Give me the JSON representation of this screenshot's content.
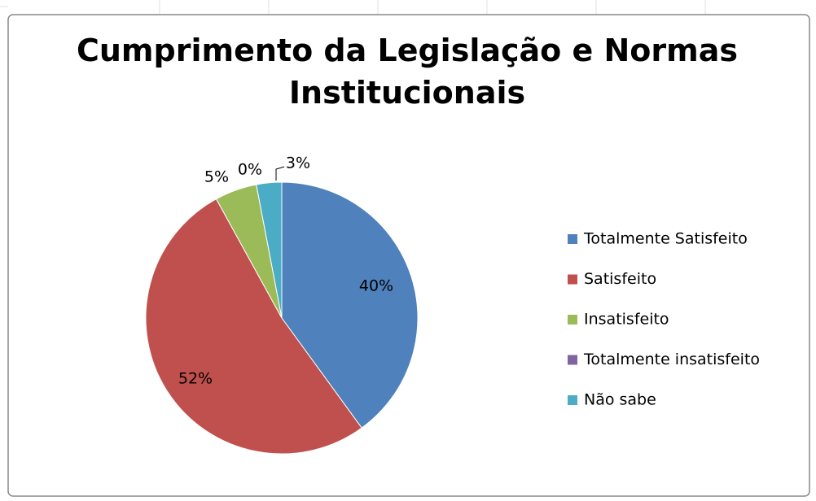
{
  "chart_data": {
    "type": "pie",
    "title": "Cumprimento da Legislação e Normas Institucionais",
    "categories": [
      "Totalmente Satisfeito",
      "Satisfeito",
      "Insatisfeito",
      "Totalmente insatisfeito",
      "Não sabe"
    ],
    "values": [
      40,
      52,
      5,
      0,
      3
    ],
    "value_labels": [
      "40%",
      "52%",
      "5%",
      "0%",
      "3%"
    ],
    "colors": [
      "#4f81bd",
      "#c0504d",
      "#9bbb59",
      "#8064a2",
      "#4bacc6"
    ],
    "legend": "right"
  }
}
